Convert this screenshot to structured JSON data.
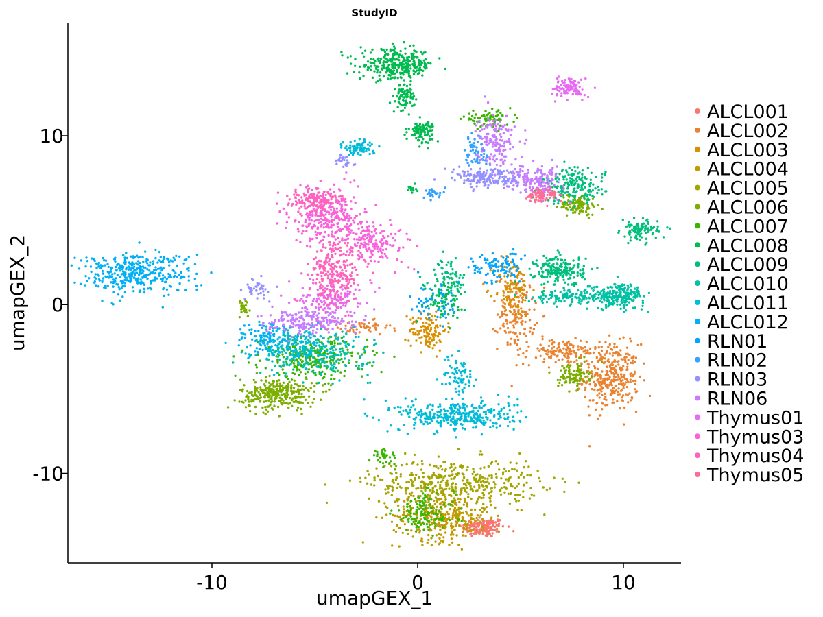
{
  "chart_data": {
    "type": "scatter",
    "title": "StudyID",
    "xlabel": "umapGEX_1",
    "ylabel": "umapGEX_2",
    "xlim": [
      -17,
      12.8
    ],
    "ylim": [
      -15.3,
      16.7
    ],
    "xticks": [
      -10,
      0,
      10
    ],
    "yticks": [
      -10,
      0,
      10
    ],
    "grid": false,
    "legend_position": "right",
    "series": [
      {
        "name": "ALCL001",
        "color": "#F8766D",
        "clusters": [
          {
            "cx": 3.2,
            "cy": -13.2,
            "sx": 0.7,
            "sy": 0.4,
            "w": 0.6
          }
        ]
      },
      {
        "name": "ALCL002",
        "color": "#EA8331",
        "clusters": [
          {
            "cx": 9.4,
            "cy": -4.3,
            "sx": 0.9,
            "sy": 1.3,
            "w": 1.3
          },
          {
            "cx": 4.8,
            "cy": -0.5,
            "sx": 0.6,
            "sy": 1.5,
            "w": 0.6
          },
          {
            "cx": 7.0,
            "cy": -2.8,
            "sx": 1.2,
            "sy": 0.5,
            "w": 0.5
          },
          {
            "cx": -2.8,
            "cy": -1.4,
            "sx": 1.0,
            "sy": 0.3,
            "w": 0.2
          }
        ]
      },
      {
        "name": "ALCL003",
        "color": "#D89000",
        "clusters": [
          {
            "cx": 0.5,
            "cy": -1.5,
            "sx": 0.6,
            "sy": 0.8,
            "w": 0.5
          },
          {
            "cx": 4.6,
            "cy": 1.0,
            "sx": 0.6,
            "sy": 1.2,
            "w": 0.4
          }
        ]
      },
      {
        "name": "ALCL004",
        "color": "#C09B00",
        "clusters": [
          {
            "cx": 1.2,
            "cy": -12.5,
            "sx": 1.6,
            "sy": 1.0,
            "w": 1.4
          }
        ]
      },
      {
        "name": "ALCL005",
        "color": "#A3A500",
        "clusters": [
          {
            "cx": 1.8,
            "cy": -10.5,
            "sx": 2.8,
            "sy": 0.9,
            "w": 1.6
          }
        ]
      },
      {
        "name": "ALCL006",
        "color": "#7CAE00",
        "clusters": [
          {
            "cx": -6.8,
            "cy": -5.3,
            "sx": 1.2,
            "sy": 0.6,
            "w": 1.2
          },
          {
            "cx": 7.8,
            "cy": 5.9,
            "sx": 0.6,
            "sy": 0.4,
            "w": 0.4
          },
          {
            "cx": 7.6,
            "cy": -4.2,
            "sx": 0.5,
            "sy": 0.5,
            "w": 0.4
          },
          {
            "cx": -8.5,
            "cy": -0.2,
            "sx": 0.3,
            "sy": 0.4,
            "w": 0.1
          }
        ]
      },
      {
        "name": "ALCL007",
        "color": "#39B600",
        "clusters": [
          {
            "cx": -5.0,
            "cy": -3.2,
            "sx": 1.7,
            "sy": 0.8,
            "w": 1.0
          },
          {
            "cx": 0.3,
            "cy": -12.4,
            "sx": 1.0,
            "sy": 0.8,
            "w": 0.5
          },
          {
            "cx": 3.4,
            "cy": 11.0,
            "sx": 0.8,
            "sy": 0.3,
            "w": 0.3
          },
          {
            "cx": -1.6,
            "cy": -9.0,
            "sx": 0.4,
            "sy": 0.3,
            "w": 0.15
          }
        ]
      },
      {
        "name": "ALCL008",
        "color": "#00BB4E",
        "clusters": [
          {
            "cx": -1.0,
            "cy": 14.2,
            "sx": 1.2,
            "sy": 0.6,
            "w": 1.2
          },
          {
            "cx": -0.6,
            "cy": 12.3,
            "sx": 0.3,
            "sy": 0.5,
            "w": 0.3
          },
          {
            "cx": 0.2,
            "cy": 10.3,
            "sx": 0.4,
            "sy": 0.4,
            "w": 0.4
          },
          {
            "cx": 1.2,
            "cy": 0.3,
            "sx": 0.7,
            "sy": 0.7,
            "w": 0.3
          },
          {
            "cx": -0.3,
            "cy": 6.9,
            "sx": 0.15,
            "sy": 0.2,
            "w": 0.05
          }
        ]
      },
      {
        "name": "ALCL009",
        "color": "#00BF7D",
        "clusters": [
          {
            "cx": 6.9,
            "cy": 2.0,
            "sx": 0.8,
            "sy": 0.6,
            "w": 0.8
          },
          {
            "cx": 7.6,
            "cy": 7.0,
            "sx": 1.0,
            "sy": 0.7,
            "w": 0.7
          },
          {
            "cx": 10.8,
            "cy": 4.4,
            "sx": 0.6,
            "sy": 0.4,
            "w": 0.4
          },
          {
            "cx": 1.5,
            "cy": 1.5,
            "sx": 0.6,
            "sy": 0.8,
            "w": 0.3
          }
        ]
      },
      {
        "name": "ALCL010",
        "color": "#00C1A3",
        "clusters": [
          {
            "cx": 9.8,
            "cy": 0.5,
            "sx": 0.8,
            "sy": 0.5,
            "w": 0.8
          },
          {
            "cx": 7.6,
            "cy": 0.5,
            "sx": 1.3,
            "sy": 0.3,
            "w": 0.5
          },
          {
            "cx": -5.0,
            "cy": -3.0,
            "sx": 1.8,
            "sy": 0.8,
            "w": 0.8
          }
        ]
      },
      {
        "name": "ALCL011",
        "color": "#00BCD8",
        "clusters": [
          {
            "cx": 2.0,
            "cy": -6.6,
            "sx": 1.9,
            "sy": 0.6,
            "w": 1.4
          },
          {
            "cx": 2.0,
            "cy": -4.3,
            "sx": 0.5,
            "sy": 0.9,
            "w": 0.3
          },
          {
            "cx": -2.8,
            "cy": 9.3,
            "sx": 0.5,
            "sy": 0.3,
            "w": 0.3
          },
          {
            "cx": -6.2,
            "cy": -2.3,
            "sx": 1.5,
            "sy": 0.7,
            "w": 0.7
          }
        ]
      },
      {
        "name": "ALCL012",
        "color": "#00B0F6",
        "clusters": [
          {
            "cx": -13.8,
            "cy": 1.9,
            "sx": 1.9,
            "sy": 0.8,
            "w": 1.5
          },
          {
            "cx": -7.4,
            "cy": -2.0,
            "sx": 0.8,
            "sy": 0.6,
            "w": 0.3
          }
        ]
      },
      {
        "name": "RLN01",
        "color": "#00A5FF",
        "clusters": [
          {
            "cx": 3.8,
            "cy": 2.2,
            "sx": 0.8,
            "sy": 0.6,
            "w": 0.4
          },
          {
            "cx": 0.9,
            "cy": 0.2,
            "sx": 0.8,
            "sy": 0.9,
            "w": 0.2
          }
        ]
      },
      {
        "name": "RLN02",
        "color": "#35A2FF",
        "clusters": [
          {
            "cx": 2.9,
            "cy": 9.0,
            "sx": 0.4,
            "sy": 0.8,
            "w": 0.25
          },
          {
            "cx": 0.8,
            "cy": 6.6,
            "sx": 0.3,
            "sy": 0.2,
            "w": 0.1
          }
        ]
      },
      {
        "name": "RLN03",
        "color": "#9590FF",
        "clusters": [
          {
            "cx": 3.5,
            "cy": 7.5,
            "sx": 1.2,
            "sy": 0.4,
            "w": 0.7
          },
          {
            "cx": -7.8,
            "cy": 0.9,
            "sx": 0.4,
            "sy": 0.4,
            "w": 0.15
          },
          {
            "cx": -3.6,
            "cy": 8.5,
            "sx": 0.3,
            "sy": 0.3,
            "w": 0.1
          }
        ]
      },
      {
        "name": "RLN06",
        "color": "#C77CFF",
        "clusters": [
          {
            "cx": 3.8,
            "cy": 9.8,
            "sx": 0.6,
            "sy": 1.0,
            "w": 0.6
          },
          {
            "cx": 5.8,
            "cy": 7.3,
            "sx": 0.8,
            "sy": 0.6,
            "w": 0.6
          },
          {
            "cx": -5.3,
            "cy": -1.0,
            "sx": 1.5,
            "sy": 0.5,
            "w": 0.8
          }
        ]
      },
      {
        "name": "Thymus01",
        "color": "#E76BF3",
        "clusters": [
          {
            "cx": 7.4,
            "cy": 12.8,
            "sx": 0.5,
            "sy": 0.4,
            "w": 0.4
          },
          {
            "cx": -4.2,
            "cy": 0.5,
            "sx": 1.0,
            "sy": 0.6,
            "w": 0.5
          }
        ]
      },
      {
        "name": "Thymus03",
        "color": "#FA62DB",
        "clusters": [
          {
            "cx": -4.3,
            "cy": 5.2,
            "sx": 1.2,
            "sy": 1.1,
            "w": 1.2
          },
          {
            "cx": -2.0,
            "cy": 3.6,
            "sx": 1.0,
            "sy": 0.8,
            "w": 0.6
          }
        ]
      },
      {
        "name": "Thymus04",
        "color": "#FF62BC",
        "clusters": [
          {
            "cx": -4.0,
            "cy": 1.8,
            "sx": 0.8,
            "sy": 1.3,
            "w": 1.0
          },
          {
            "cx": -5.0,
            "cy": 6.2,
            "sx": 0.9,
            "sy": 0.5,
            "w": 0.5
          }
        ]
      },
      {
        "name": "Thymus05",
        "color": "#FF6C91",
        "clusters": [
          {
            "cx": 6.0,
            "cy": 6.5,
            "sx": 0.5,
            "sy": 0.3,
            "w": 0.3
          }
        ]
      }
    ]
  }
}
